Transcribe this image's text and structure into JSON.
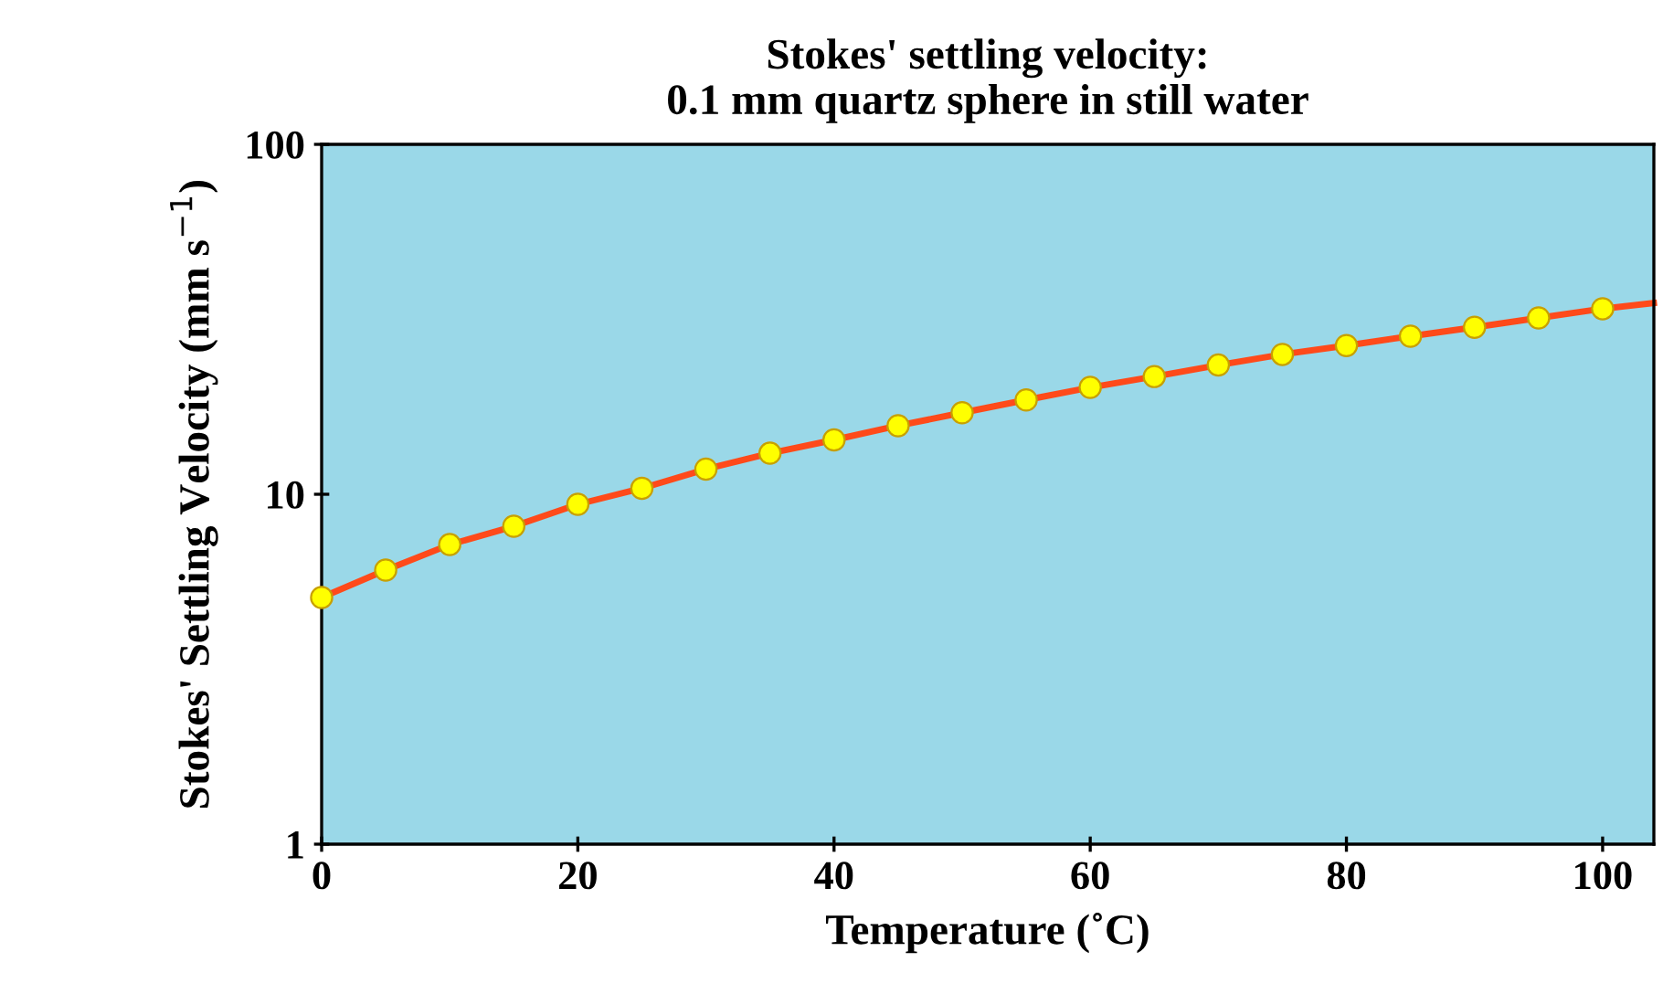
{
  "chart_data": {
    "type": "scatter",
    "title": "Stokes' settling velocity:\n0.1 mm quartz sphere in still water",
    "xlabel": "Temperature (˚C)",
    "ylabel": "Stokes' Settling Velocity (mm s$^{−1}$)",
    "x": [
      0,
      5,
      10,
      15,
      20,
      25,
      30,
      35,
      40,
      45,
      50,
      55,
      60,
      65,
      70,
      75,
      80,
      85,
      90,
      95,
      100
    ],
    "series": [
      {
        "type": "line",
        "color": "#ff4a1a",
        "marker": "none",
        "x": [
          0,
          5,
          10,
          15,
          20,
          25,
          30,
          35,
          40,
          45,
          50,
          55,
          60,
          65,
          70,
          75,
          80,
          85,
          90,
          95,
          100,
          104
        ],
        "values": [
          5.07,
          6.07,
          7.18,
          8.1,
          9.36,
          10.4,
          11.8,
          13.1,
          14.3,
          15.7,
          17.1,
          18.6,
          20.2,
          21.7,
          23.4,
          25.1,
          26.6,
          28.3,
          30.0,
          31.9,
          33.9,
          35.2
        ]
      },
      {
        "type": "scatter",
        "color": "#ffff00",
        "marker": "circle",
        "values": [
          5.07,
          6.07,
          7.18,
          8.1,
          9.36,
          10.4,
          11.8,
          13.1,
          14.3,
          15.7,
          17.1,
          18.6,
          20.2,
          21.7,
          23.4,
          25.1,
          26.6,
          28.3,
          30.0,
          31.9,
          33.9
        ]
      }
    ],
    "log": "y",
    "xlim": [
      0,
      104
    ],
    "ylim": [
      1,
      100
    ],
    "xticks": [
      0,
      20,
      40,
      60,
      80,
      100
    ],
    "yticks": [
      1,
      10,
      100
    ],
    "grid": false,
    "legend": false
  }
}
